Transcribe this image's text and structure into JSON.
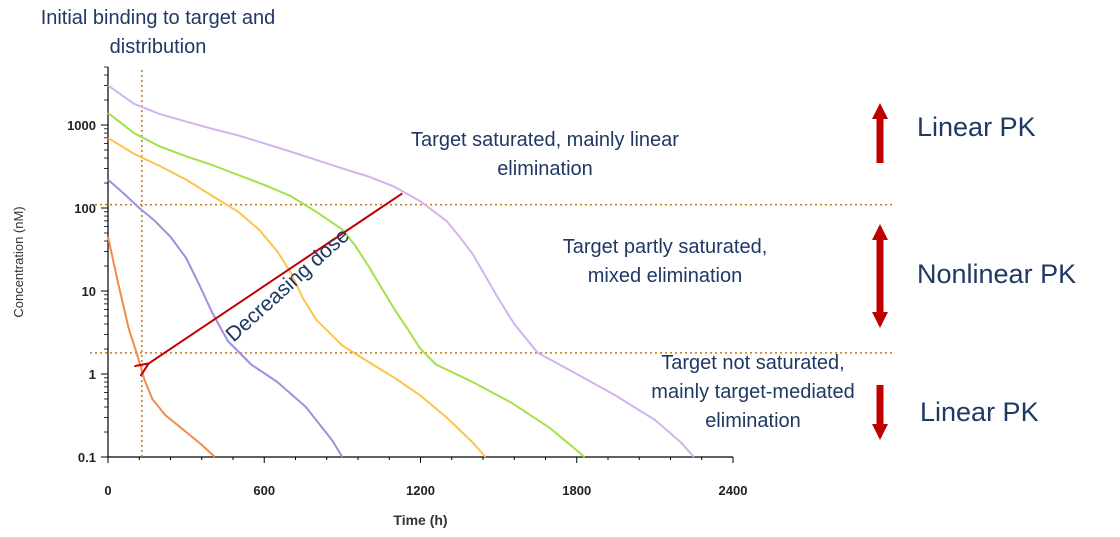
{
  "chart_data": {
    "type": "line",
    "title": "",
    "xlabel": "Time (h)",
    "ylabel": "Concentration (nM)",
    "xlim": [
      0,
      2400
    ],
    "ylim": [
      0.1,
      5000
    ],
    "yscale": "log",
    "x_ticks": [
      0,
      600,
      1200,
      1800,
      2400
    ],
    "x_tick_labels": [
      "0",
      "600",
      "1200",
      "1800",
      "2400"
    ],
    "y_ticks": [
      0.1,
      1,
      10,
      100,
      1000
    ],
    "y_tick_labels": [
      "0.1",
      "1",
      "10",
      "100",
      "1000"
    ],
    "grid": false,
    "legend": "none",
    "reference_lines": {
      "vertical_x": 130,
      "horizontal_y": [
        110,
        1.8
      ],
      "color": "#c07a1a"
    },
    "series": [
      {
        "color": "#f28a4e",
        "x": [
          0,
          40,
          80,
          110,
          140,
          170,
          220,
          300,
          360,
          410
        ],
        "y": [
          45,
          12,
          3.5,
          1.8,
          0.85,
          0.5,
          0.32,
          0.2,
          0.14,
          0.1
        ]
      },
      {
        "color": "#9e8fe3",
        "x": [
          0,
          60,
          120,
          180,
          240,
          300,
          350,
          400,
          460,
          550,
          650,
          760,
          860,
          900
        ],
        "y": [
          220,
          150,
          100,
          70,
          45,
          25,
          12,
          5.5,
          2.5,
          1.3,
          0.8,
          0.4,
          0.16,
          0.1
        ]
      },
      {
        "color": "#ffc34d",
        "x": [
          0,
          100,
          200,
          300,
          400,
          500,
          580,
          650,
          700,
          750,
          800,
          900,
          1000,
          1100,
          1200,
          1300,
          1400,
          1450
        ],
        "y": [
          700,
          450,
          320,
          220,
          140,
          90,
          55,
          30,
          17,
          8,
          4.5,
          2.2,
          1.4,
          0.9,
          0.55,
          0.3,
          0.15,
          0.1
        ]
      },
      {
        "color": "#a3e04a",
        "x": [
          0,
          100,
          200,
          300,
          400,
          500,
          600,
          700,
          800,
          900,
          950,
          1000,
          1050,
          1100,
          1150,
          1200,
          1260,
          1400,
          1550,
          1700,
          1800,
          1830
        ],
        "y": [
          1400,
          800,
          550,
          420,
          330,
          250,
          190,
          140,
          90,
          55,
          35,
          20,
          11,
          6,
          3.5,
          2,
          1.3,
          0.8,
          0.45,
          0.22,
          0.12,
          0.1
        ]
      },
      {
        "color": "#d4b2ee",
        "x": [
          0,
          100,
          200,
          300,
          400,
          500,
          600,
          700,
          800,
          900,
          1000,
          1100,
          1200,
          1300,
          1350,
          1400,
          1450,
          1500,
          1560,
          1650,
          1800,
          1950,
          2100,
          2200,
          2250
        ],
        "y": [
          3000,
          1800,
          1350,
          1100,
          900,
          750,
          600,
          480,
          380,
          300,
          240,
          180,
          120,
          70,
          45,
          28,
          15,
          8,
          4,
          1.8,
          1.0,
          0.55,
          0.28,
          0.15,
          0.1
        ]
      }
    ],
    "dose_arrow": {
      "from": [
        1130,
        150
      ],
      "to": [
        150,
        1.3
      ],
      "color": "#c00000"
    },
    "annotations": {
      "initial": [
        "Initial binding to target and",
        "distribution"
      ],
      "saturated": [
        "Target saturated, mainly linear",
        "elimination"
      ],
      "partly": [
        "Target partly saturated,",
        "mixed elimination"
      ],
      "not_saturated": [
        "Target not saturated,",
        "mainly target-mediated",
        "elimination"
      ],
      "decreasing_dose": "Decreasing dose"
    },
    "pk_labels": {
      "top": "Linear PK",
      "middle": "Nonlinear PK",
      "bottom": "Linear PK"
    },
    "pk_arrow_color": "#c00000"
  }
}
